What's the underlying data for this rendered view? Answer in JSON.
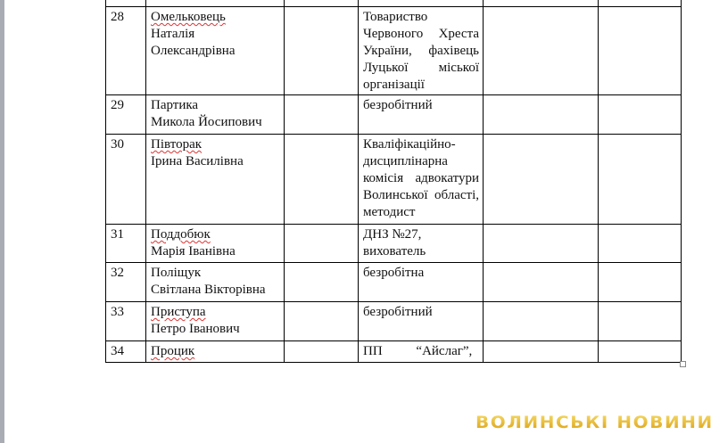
{
  "rows": [
    {
      "num": "",
      "name": [
        ""
      ],
      "occupation": ""
    },
    {
      "num": "28",
      "name": [
        "Омельковець",
        "Наталія",
        "Олександрівна"
      ],
      "occupation": "Товариство Червоного Хреста України, фахівець Луцької міської організації"
    },
    {
      "num": "29",
      "name": [
        "Партика",
        "Микола Йосипович"
      ],
      "occupation": "безробітний"
    },
    {
      "num": "30",
      "name": [
        "Півторак",
        "Ірина Василівна"
      ],
      "occupation": "Кваліфікаційно-дисциплінарна комісія адвокатури Волинської області, методист"
    },
    {
      "num": "31",
      "name": [
        "Поддобюк",
        "Марія Іванівна"
      ],
      "occupation": "ДНЗ №27, вихователь"
    },
    {
      "num": "32",
      "name": [
        "Поліщук",
        "Світлана Вікторівна"
      ],
      "occupation": "безробітна"
    },
    {
      "num": "33",
      "name": [
        "Приступа",
        "Петро Іванович"
      ],
      "occupation": "безробітний"
    },
    {
      "num": "34",
      "name": [
        "Процик"
      ],
      "occupation": "ПП “Айслаг”,"
    }
  ],
  "watermark": "ВОЛИНСЬКІ НОВИНИ"
}
